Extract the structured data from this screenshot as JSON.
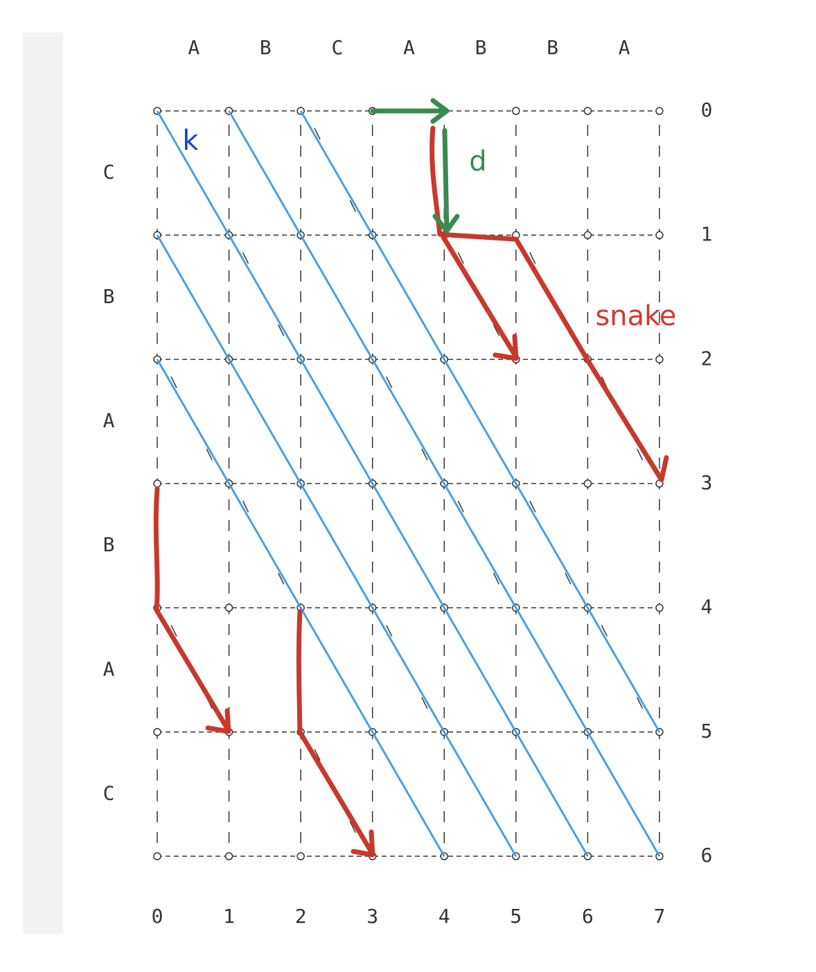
{
  "columns": {
    "letters": [
      "A",
      "B",
      "C",
      "A",
      "B",
      "B",
      "A"
    ],
    "numbers": [
      0,
      1,
      2,
      3,
      4,
      5,
      6,
      7
    ]
  },
  "rows": {
    "letters": [
      "C",
      "B",
      "A",
      "B",
      "A",
      "C"
    ],
    "numbers": [
      0,
      1,
      2,
      3,
      4,
      5,
      6
    ]
  },
  "annotations": {
    "k": "k",
    "d": "d",
    "snake": "snake"
  }
}
